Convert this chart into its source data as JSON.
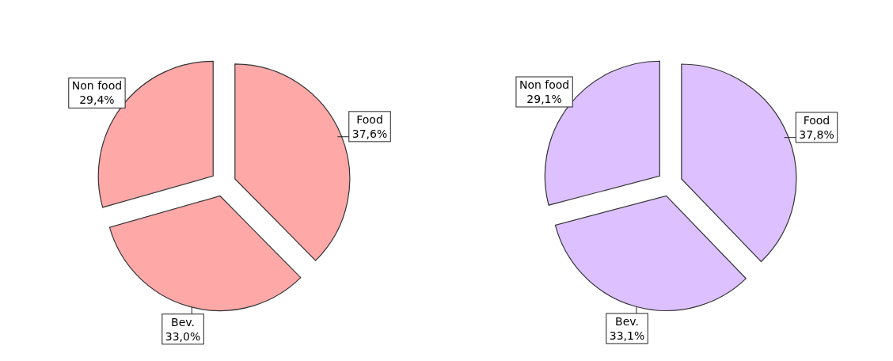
{
  "chart_data": [
    {
      "type": "pie",
      "categories": [
        "Food",
        "Bev.",
        "Non food"
      ],
      "values": [
        37.6,
        33.0,
        29.4
      ],
      "colors": [
        "#ffa8a8",
        "#ffa8a8",
        "#ffa8a8"
      ],
      "value_labels": [
        "37,6%",
        "33,0%",
        "29,4%"
      ]
    },
    {
      "type": "pie",
      "categories": [
        "Food",
        "Bev.",
        "Non food"
      ],
      "values": [
        37.8,
        33.1,
        29.1
      ],
      "colors": [
        "#dcc0ff",
        "#dcc0ff",
        "#dcc0ff"
      ],
      "value_labels": [
        "37,8%",
        "33,1%",
        "29,1%"
      ]
    }
  ]
}
